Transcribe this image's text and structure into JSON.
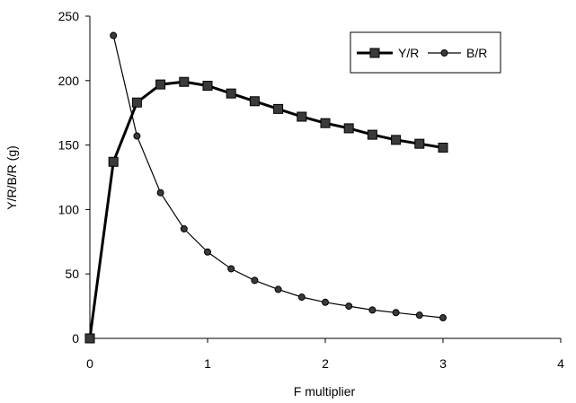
{
  "chart_data": {
    "type": "line",
    "xlabel": "F multiplier",
    "ylabel": "Y/R/B/R (g)",
    "xlim": [
      0,
      4
    ],
    "ylim": [
      0,
      250
    ],
    "xticks": [
      0,
      1,
      2,
      3,
      4
    ],
    "yticks": [
      0,
      50,
      100,
      150,
      200,
      250
    ],
    "grid": false,
    "legend_position": "top-right",
    "series": [
      {
        "name": "Y/R",
        "marker": "square",
        "color": "#000000",
        "x": [
          0,
          0.2,
          0.4,
          0.6,
          0.8,
          1.0,
          1.2,
          1.4,
          1.6,
          1.8,
          2.0,
          2.2,
          2.4,
          2.6,
          2.8,
          3.0
        ],
        "y": [
          0,
          137,
          183,
          197,
          199,
          196,
          190,
          184,
          178,
          172,
          167,
          163,
          158,
          154,
          151,
          148
        ]
      },
      {
        "name": "B/R",
        "marker": "circle",
        "color": "#000000",
        "x": [
          0.2,
          0.4,
          0.6,
          0.8,
          1.0,
          1.2,
          1.4,
          1.6,
          1.8,
          2.0,
          2.2,
          2.4,
          2.6,
          2.8,
          3.0
        ],
        "y": [
          235,
          157,
          113,
          85,
          67,
          54,
          45,
          38,
          32,
          28,
          25,
          22,
          20,
          18,
          16
        ]
      }
    ]
  }
}
